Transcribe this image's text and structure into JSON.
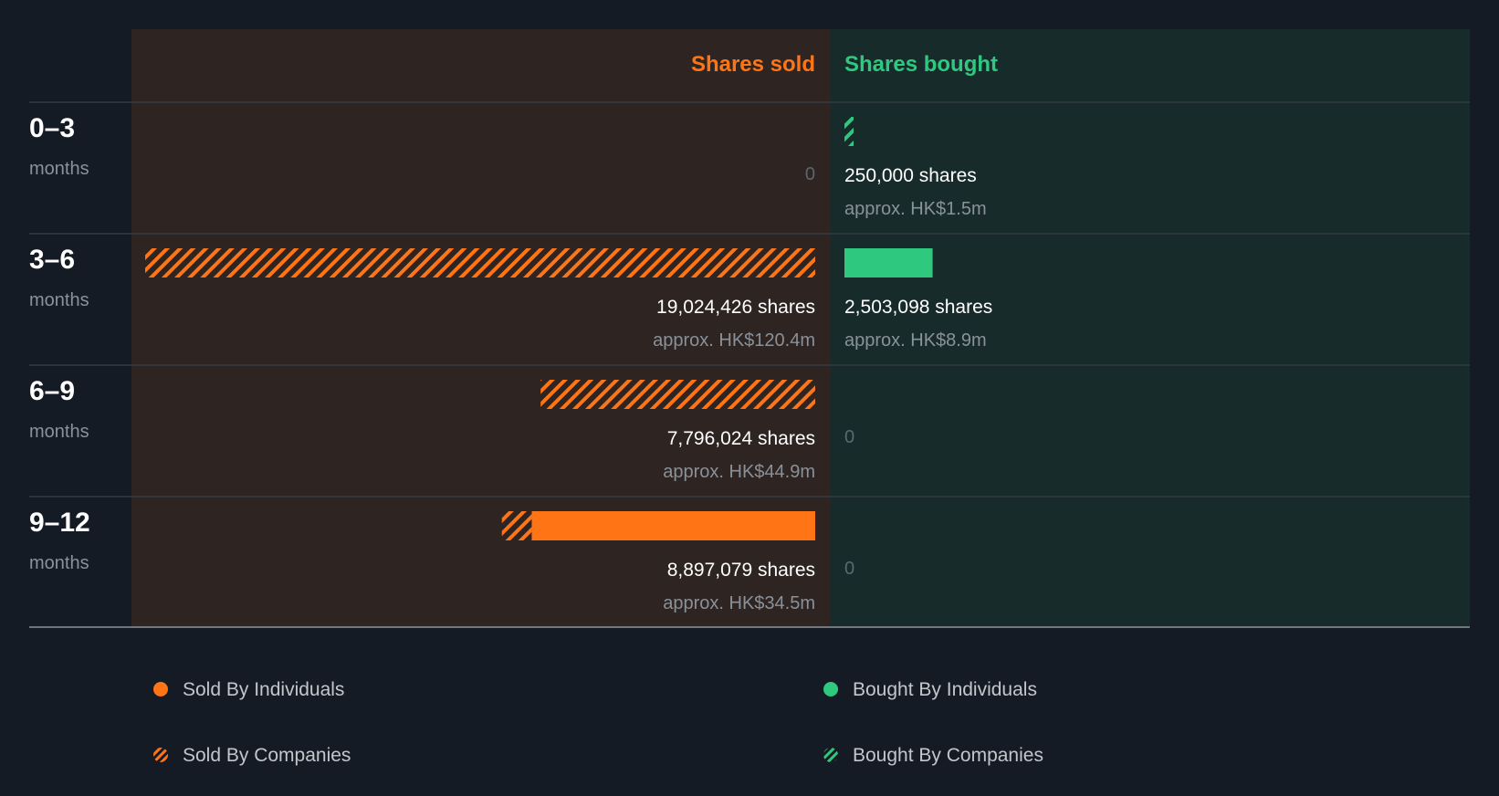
{
  "chart_data": {
    "type": "bar",
    "headers": {
      "sold": "Shares sold",
      "bought": "Shares bought"
    },
    "colors": {
      "sold": "#ff7515",
      "bought": "#2ec97f",
      "sold_panel": "#2e2421",
      "bought_panel": "#182b2b",
      "background": "#151b24"
    },
    "periods": [
      {
        "label": "0–3",
        "unit": "months",
        "sold": {
          "individuals": 0,
          "companies": 0,
          "shares_text": "",
          "approx_text": "",
          "zero_text": "0"
        },
        "bought": {
          "individuals": 0,
          "companies": 250000,
          "shares_text": "250,000 shares",
          "approx_text": "approx. HK$1.5m",
          "zero_text": ""
        }
      },
      {
        "label": "3–6",
        "unit": "months",
        "sold": {
          "individuals": 0,
          "companies": 19024426,
          "shares_text": "19,024,426 shares",
          "approx_text": "approx. HK$120.4m",
          "zero_text": ""
        },
        "bought": {
          "individuals": 2503098,
          "companies": 0,
          "shares_text": "2,503,098 shares",
          "approx_text": "approx. HK$8.9m",
          "zero_text": ""
        }
      },
      {
        "label": "6–9",
        "unit": "months",
        "sold": {
          "individuals": 0,
          "companies": 7796024,
          "shares_text": "7,796,024 shares",
          "approx_text": "approx. HK$44.9m",
          "zero_text": ""
        },
        "bought": {
          "individuals": 0,
          "companies": 0,
          "shares_text": "",
          "approx_text": "",
          "zero_text": "0"
        }
      },
      {
        "label": "9–12",
        "unit": "months",
        "sold": {
          "individuals": 8050000,
          "companies": 847079,
          "shares_text": "8,897,079 shares",
          "approx_text": "approx. HK$34.5m",
          "zero_text": ""
        },
        "bought": {
          "individuals": 0,
          "companies": 0,
          "shares_text": "",
          "approx_text": "",
          "zero_text": "0"
        }
      }
    ],
    "legend": [
      {
        "label": "Sold By Individuals",
        "color": "#ff7515",
        "pattern": "solid"
      },
      {
        "label": "Bought By Individuals",
        "color": "#2ec97f",
        "pattern": "solid"
      },
      {
        "label": "Sold By Companies",
        "color": "#ff7515",
        "pattern": "hatched"
      },
      {
        "label": "Bought By Companies",
        "color": "#2ec97f",
        "pattern": "hatched"
      }
    ],
    "scale_max": 19024426
  }
}
